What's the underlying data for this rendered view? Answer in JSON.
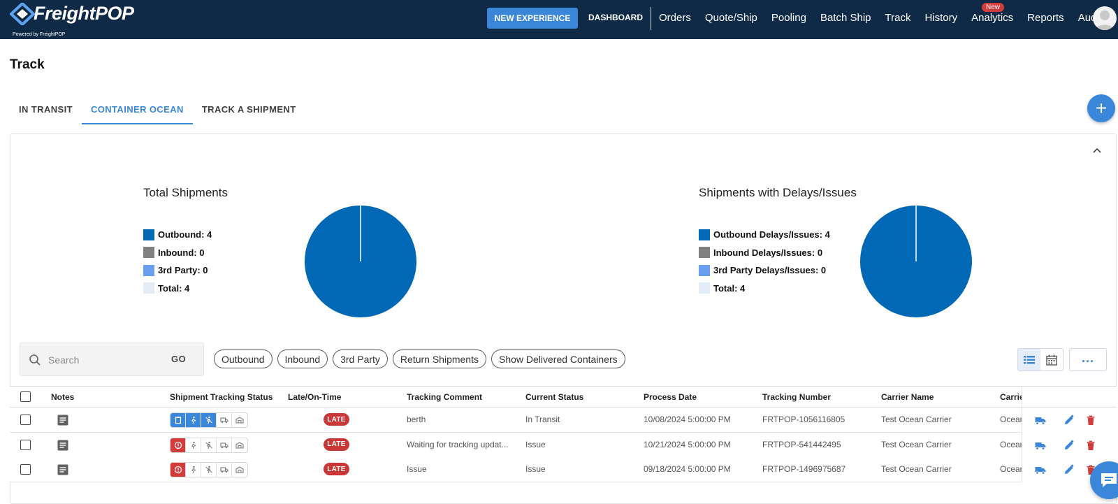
{
  "app": {
    "logo_text": "FreightPOP",
    "powered_by": "Powered by FreightPOP"
  },
  "nav": {
    "new_experience": "NEW EXPERIENCE",
    "dashboard": "DASHBOARD",
    "items": [
      "Orders",
      "Quote/Ship",
      "Pooling",
      "Batch Ship",
      "Track",
      "History",
      "Analytics",
      "Reports",
      "Audit"
    ],
    "analytics_badge": "New"
  },
  "page": {
    "title": "Track"
  },
  "tabs": [
    {
      "label": "IN TRANSIT",
      "active": false
    },
    {
      "label": "CONTAINER OCEAN",
      "active": true
    },
    {
      "label": "TRACK A SHIPMENT",
      "active": false
    }
  ],
  "colors": {
    "accent": "#3a86d8",
    "pie_outbound": "#0068b4",
    "inbound": "#808080",
    "third_party": "#6a9ef0",
    "total": "#e3ecf7",
    "late": "#c93737"
  },
  "charts": {
    "total": {
      "title": "Total Shipments",
      "legend": [
        "Outbound: 4",
        "Inbound: 0",
        "3rd Party: 0",
        "Total: 4"
      ]
    },
    "delays": {
      "title": "Shipments with Delays/Issues",
      "legend": [
        "Outbound Delays/Issues: 4",
        "Inbound Delays/Issues: 0",
        "3rd Party Delays/Issues: 0",
        "Total: 4"
      ]
    }
  },
  "chart_data": [
    {
      "type": "pie",
      "title": "Total Shipments",
      "categories": [
        "Outbound",
        "Inbound",
        "3rd Party"
      ],
      "values": [
        4,
        0,
        0
      ]
    },
    {
      "type": "pie",
      "title": "Shipments with Delays/Issues",
      "categories": [
        "Outbound Delays/Issues",
        "Inbound Delays/Issues",
        "3rd Party Delays/Issues"
      ],
      "values": [
        4,
        0,
        0
      ]
    }
  ],
  "search": {
    "placeholder": "Search",
    "go": "GO"
  },
  "filters": [
    "Outbound",
    "Inbound",
    "3rd Party",
    "Return Shipments",
    "Show Delivered Containers"
  ],
  "more_label": "...",
  "table": {
    "headers": [
      "Notes",
      "Shipment Tracking Status",
      "Late/On-Time",
      "Tracking Comment",
      "Current Status",
      "Process Date",
      "Tracking Number",
      "Carrier Name",
      "Carrie"
    ],
    "rows": [
      {
        "late": "LATE",
        "comment": "berth",
        "status": "In Transit",
        "date": "10/08/2024 5:00:00 PM",
        "tracking": "FRTPOP-1056116805",
        "carrier": "Test Ocean Carrier",
        "carrier2": "Ocean",
        "first_state": "on"
      },
      {
        "late": "LATE",
        "comment": "Waiting for tracking updat...",
        "status": "Issue",
        "date": "10/21/2024 5:00:00 PM",
        "tracking": "FRTPOP-541442495",
        "carrier": "Test Ocean Carrier",
        "carrier2": "Ocean",
        "first_state": "err"
      },
      {
        "late": "LATE",
        "comment": "Issue",
        "status": "Issue",
        "date": "09/18/2024 5:00:00 PM",
        "tracking": "FRTPOP-1496975687",
        "carrier": "Test Ocean Carrier",
        "carrier2": "Ocean",
        "first_state": "err"
      }
    ]
  }
}
